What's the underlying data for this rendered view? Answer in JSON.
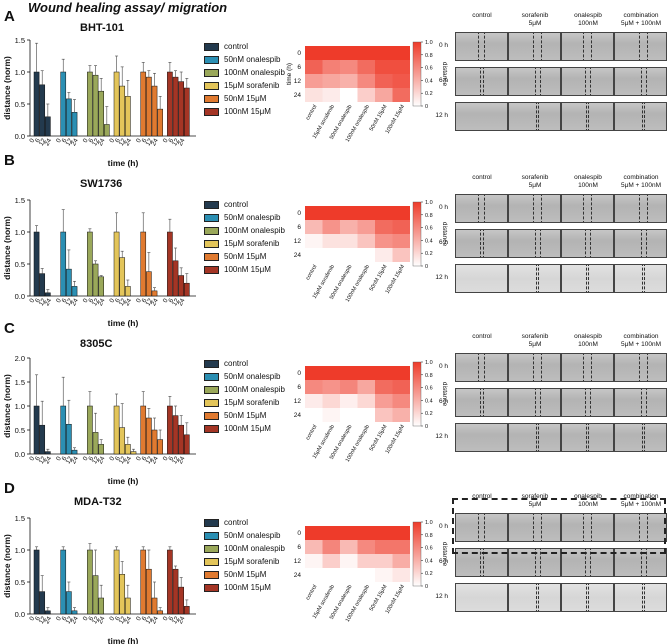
{
  "figure_title": "Wound healing assay/ migration",
  "legend_entries_std": [
    "control",
    "50nM onalespib",
    "100nM onalespib",
    "15μM sorafenib",
    "50nM 15μM",
    "100nM 15μM"
  ],
  "legend_entries_A": [
    "control",
    "50nM onalespib",
    "100nM onalespib",
    "15μM sorafenib",
    "50nM 15μM",
    "100nM 15μM"
  ],
  "series_colors": [
    "#233a4e",
    "#2b8fb3",
    "#9aa85a",
    "#e3c55a",
    "#e07a30",
    "#a43525"
  ],
  "heatmap_colors": {
    "high": "#ee3b2a",
    "low": "#ffffff"
  },
  "heatmap_colorbar": {
    "label": "distance",
    "ticks": [
      "1.0",
      "0.8",
      "0.6",
      "0.4",
      "0.2",
      "0"
    ]
  },
  "microscopy": {
    "column_heads": [
      [
        "control",
        ""
      ],
      [
        "sorafenib",
        "5μM"
      ],
      [
        "onalespib",
        "100nM"
      ],
      [
        "combination",
        "5μM + 100nM"
      ]
    ],
    "row_labels": [
      "0 h",
      "6 h",
      "12 h"
    ]
  },
  "panels": [
    {
      "letter": "A",
      "cell_line": "BHT-101"
    },
    {
      "letter": "B",
      "cell_line": "SW1736"
    },
    {
      "letter": "C",
      "cell_line": "8305C"
    },
    {
      "letter": "D",
      "cell_line": "MDA-T32"
    }
  ],
  "chart_data": [
    {
      "type": "bar",
      "panel": "A",
      "title": "BHT-101",
      "xlabel": "time (h)",
      "ylabel": "distance (norm)",
      "categories": [
        "0",
        "6",
        "12",
        "24"
      ],
      "ylim": [
        0,
        1.5
      ],
      "yticks": [
        "0.0",
        "0.5",
        "1.0",
        "1.5"
      ],
      "series": [
        {
          "name": "control",
          "values": [
            1.0,
            0.8,
            0.3,
            0.0
          ],
          "errors": [
            0.45,
            0.22,
            0.2,
            0.0
          ]
        },
        {
          "name": "50nM onalespib",
          "values": [
            1.0,
            0.58,
            0.37,
            0.0
          ],
          "errors": [
            0.2,
            0.1,
            0.2,
            0.0
          ]
        },
        {
          "name": "100nM onalespib",
          "values": [
            1.0,
            0.95,
            0.7,
            0.18
          ],
          "errors": [
            0.1,
            0.15,
            0.2,
            0.28
          ]
        },
        {
          "name": "15μM sorafenib",
          "values": [
            1.0,
            0.78,
            0.62,
            0.0
          ],
          "errors": [
            0.25,
            0.3,
            0.25,
            0.0
          ]
        },
        {
          "name": "50nM 15μM",
          "values": [
            1.0,
            0.92,
            0.78,
            0.42
          ],
          "errors": [
            0.15,
            0.1,
            0.2,
            0.2
          ]
        },
        {
          "name": "100nM 15μM",
          "values": [
            1.0,
            0.92,
            0.85,
            0.75
          ],
          "errors": [
            0.15,
            0.1,
            0.15,
            0.15
          ]
        }
      ]
    },
    {
      "type": "heatmap",
      "panel": "A",
      "ylabel": "time (h)",
      "rows": [
        "0",
        "6",
        "12",
        "24"
      ],
      "columns": [
        "control",
        "15μM sorafenib",
        "50nM onalespib",
        "100nM onalespib",
        "50nM 15μM",
        "100nM 15μM"
      ],
      "values": [
        [
          1,
          1,
          1,
          1,
          1,
          1
        ],
        [
          0.8,
          0.65,
          0.6,
          0.75,
          0.9,
          0.9
        ],
        [
          0.5,
          0.45,
          0.4,
          0.6,
          0.8,
          0.85
        ],
        [
          0.15,
          0.1,
          0.0,
          0.25,
          0.45,
          0.75
        ]
      ]
    },
    {
      "type": "bar",
      "panel": "B",
      "title": "SW1736",
      "xlabel": "time (h)",
      "ylabel": "distance (norm)",
      "categories": [
        "0",
        "6",
        "12",
        "24"
      ],
      "ylim": [
        0,
        1.5
      ],
      "yticks": [
        "0.0",
        "0.5",
        "1.0",
        "1.5"
      ],
      "series": [
        {
          "name": "control",
          "values": [
            1.0,
            0.35,
            0.05,
            0.0
          ],
          "errors": [
            0.1,
            0.08,
            0.05,
            0.0
          ]
        },
        {
          "name": "50nM onalespib",
          "values": [
            1.0,
            0.42,
            0.15,
            0.0
          ],
          "errors": [
            0.35,
            0.3,
            0.08,
            0.0
          ]
        },
        {
          "name": "100nM onalespib",
          "values": [
            1.0,
            0.5,
            0.3,
            0.0
          ],
          "errors": [
            0.05,
            0.05,
            0.02,
            0.0
          ]
        },
        {
          "name": "15μM sorafenib",
          "values": [
            1.0,
            0.6,
            0.15,
            0.0
          ],
          "errors": [
            0.3,
            0.1,
            0.1,
            0.0
          ]
        },
        {
          "name": "50nM 15μM",
          "values": [
            1.0,
            0.38,
            0.08,
            0.0
          ],
          "errors": [
            0.3,
            0.3,
            0.05,
            0.0
          ]
        },
        {
          "name": "100nM 15μM",
          "values": [
            1.0,
            0.55,
            0.32,
            0.2
          ],
          "errors": [
            0.2,
            0.2,
            0.12,
            0.15
          ]
        }
      ]
    },
    {
      "type": "heatmap",
      "panel": "B",
      "ylabel": "",
      "rows": [
        "0",
        "6",
        "12",
        "24"
      ],
      "columns": [
        "control",
        "15μM sorafenib",
        "50nM onalespib",
        "100nM onalespib",
        "50nM 15μM",
        "100nM 15μM"
      ],
      "values": [
        [
          1,
          1,
          1,
          1,
          1,
          1
        ],
        [
          0.35,
          0.55,
          0.4,
          0.5,
          0.75,
          0.8
        ],
        [
          0.05,
          0.15,
          0.15,
          0.3,
          0.55,
          0.6
        ],
        [
          0.0,
          0.0,
          0.0,
          0.0,
          0.1,
          0.3
        ]
      ]
    },
    {
      "type": "bar",
      "panel": "C",
      "title": "8305C",
      "xlabel": "time (h)",
      "ylabel": "distance (norm)",
      "categories": [
        "0",
        "6",
        "12",
        "24"
      ],
      "ylim": [
        0,
        2.0
      ],
      "yticks": [
        "0.0",
        "0.5",
        "1.0",
        "1.5",
        "2.0"
      ],
      "series": [
        {
          "name": "control",
          "values": [
            1.0,
            0.6,
            0.05,
            0.0
          ],
          "errors": [
            0.65,
            0.5,
            0.05,
            0.0
          ]
        },
        {
          "name": "50nM onalespib",
          "values": [
            1.0,
            0.62,
            0.08,
            0.0
          ],
          "errors": [
            0.6,
            0.5,
            0.05,
            0.0
          ]
        },
        {
          "name": "100nM onalespib",
          "values": [
            1.0,
            0.45,
            0.2,
            0.0
          ],
          "errors": [
            0.3,
            0.4,
            0.1,
            0.0
          ]
        },
        {
          "name": "15μM sorafenib",
          "values": [
            1.0,
            0.55,
            0.2,
            0.05
          ],
          "errors": [
            0.25,
            0.5,
            0.15,
            0.05
          ]
        },
        {
          "name": "50nM 15μM",
          "values": [
            1.0,
            0.75,
            0.5,
            0.3
          ],
          "errors": [
            0.3,
            0.2,
            0.25,
            0.2
          ]
        },
        {
          "name": "100nM 15μM",
          "values": [
            1.0,
            0.8,
            0.6,
            0.4
          ],
          "errors": [
            0.2,
            0.2,
            0.2,
            0.25
          ]
        }
      ]
    },
    {
      "type": "heatmap",
      "panel": "C",
      "ylabel": "",
      "rows": [
        "0",
        "6",
        "12",
        "24"
      ],
      "columns": [
        "control",
        "15μM sorafenib",
        "50nM onalespib",
        "100nM onalespib",
        "50nM 15μM",
        "100nM 15μM"
      ],
      "values": [
        [
          1,
          1,
          1,
          1,
          1,
          1
        ],
        [
          0.6,
          0.55,
          0.62,
          0.45,
          0.75,
          0.8
        ],
        [
          0.1,
          0.2,
          0.08,
          0.2,
          0.5,
          0.6
        ],
        [
          0.0,
          0.05,
          0.0,
          0.0,
          0.3,
          0.4
        ]
      ]
    },
    {
      "type": "bar",
      "panel": "D",
      "title": "MDA-T32",
      "xlabel": "time (h)",
      "ylabel": "distance (norm)",
      "categories": [
        "0",
        "6",
        "12",
        "24"
      ],
      "ylim": [
        0,
        1.5
      ],
      "yticks": [
        "0.0",
        "0.5",
        "1.0",
        "1.5"
      ],
      "series": [
        {
          "name": "control",
          "values": [
            1.0,
            0.35,
            0.05,
            0.0
          ],
          "errors": [
            0.05,
            0.25,
            0.05,
            0.0
          ]
        },
        {
          "name": "50nM onalespib",
          "values": [
            1.0,
            0.35,
            0.05,
            0.0
          ],
          "errors": [
            0.05,
            0.15,
            0.05,
            0.0
          ]
        },
        {
          "name": "100nM onalespib",
          "values": [
            1.0,
            0.6,
            0.25,
            0.0
          ],
          "errors": [
            0.1,
            0.4,
            0.2,
            0.0
          ]
        },
        {
          "name": "15μM sorafenib",
          "values": [
            1.0,
            0.62,
            0.25,
            0.0
          ],
          "errors": [
            0.05,
            0.2,
            0.2,
            0.0
          ]
        },
        {
          "name": "50nM 15μM",
          "values": [
            1.0,
            0.7,
            0.25,
            0.05
          ],
          "errors": [
            0.05,
            0.3,
            0.25,
            0.05
          ]
        },
        {
          "name": "100nM 15μM",
          "values": [
            1.0,
            0.7,
            0.42,
            0.12
          ],
          "errors": [
            0.05,
            0.05,
            0.15,
            0.1
          ]
        }
      ]
    },
    {
      "type": "heatmap",
      "panel": "D",
      "ylabel": "",
      "rows": [
        "0",
        "6",
        "12",
        "24"
      ],
      "columns": [
        "control",
        "15μM sorafenib",
        "50nM onalespib",
        "100nM onalespib",
        "50nM 15μM",
        "100nM 15μM"
      ],
      "values": [
        [
          1,
          1,
          1,
          1,
          1,
          1
        ],
        [
          0.35,
          0.62,
          0.35,
          0.6,
          0.7,
          0.7
        ],
        [
          0.05,
          0.25,
          0.05,
          0.25,
          0.25,
          0.42
        ],
        [
          0.0,
          0.0,
          0.0,
          0.0,
          0.05,
          0.12
        ]
      ]
    }
  ]
}
